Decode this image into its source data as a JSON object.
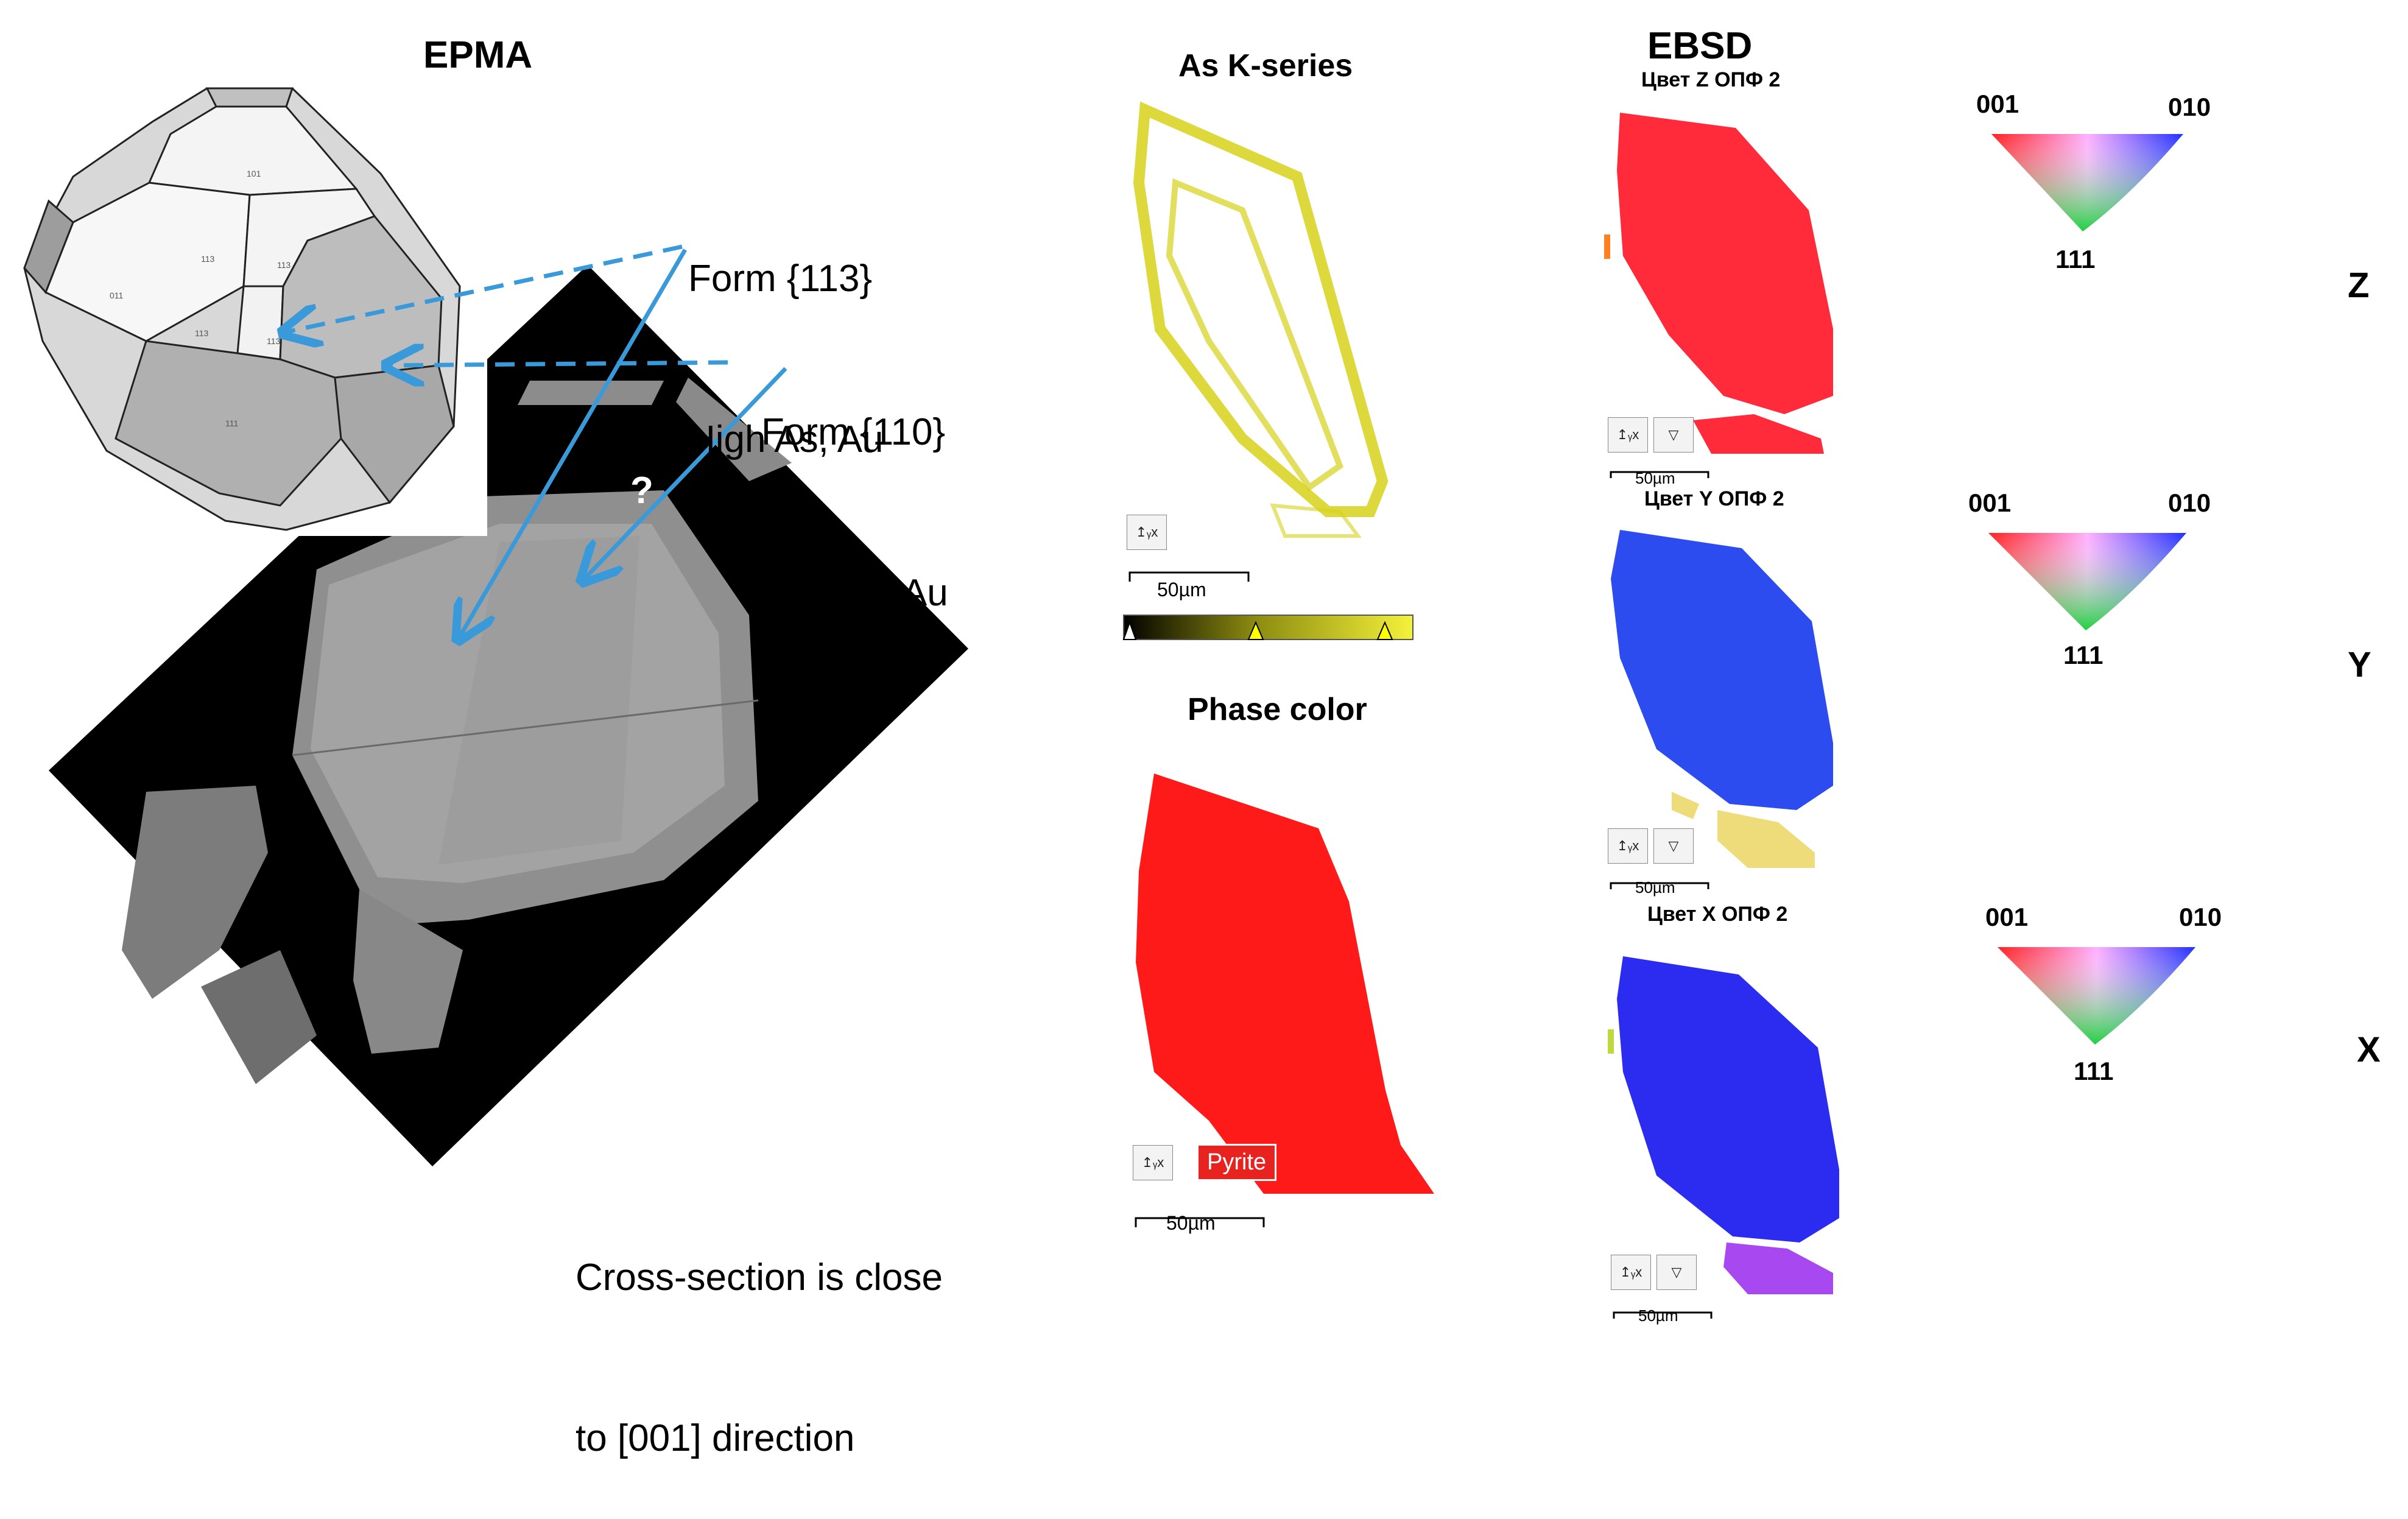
{
  "epma": {
    "title": "EPMA",
    "callout_113_line1": "Form {113}",
    "callout_113_line2": "High As, Au",
    "callout_110_line1": "Form {110}",
    "callout_110_line2": "Low As, Au",
    "question_mark": "?",
    "caption_line1": "Cross-section is close",
    "caption_line2": "to [001] direction",
    "face_labels": [
      "101",
      "113",
      "113",
      "011",
      "113",
      "113",
      "111"
    ]
  },
  "as_map": {
    "title": "As K-series",
    "scale": "50µm"
  },
  "phase_map": {
    "title": "Phase color",
    "phase": "Pyrite",
    "scale": "50µm"
  },
  "ebsd": {
    "title": "EBSD",
    "maps": [
      {
        "title": "Цвет Z ОПФ 2",
        "scale": "50µm",
        "axis": "Z"
      },
      {
        "title": "Цвет Y ОПФ 2",
        "scale": "50µm",
        "axis": "Y"
      },
      {
        "title": "Цвет X ОПФ 2",
        "scale": "50µm",
        "axis": "X"
      }
    ],
    "ipf_labels": {
      "a": "001",
      "b": "010",
      "c": "111"
    }
  },
  "colors": {
    "arrow": "#3a9ad9",
    "as_yellow": "#d7d21a",
    "phase_red": "#ff1a1a",
    "ipf_red": "#ff2a3a",
    "ipf_blue": "#2c4cf0"
  }
}
